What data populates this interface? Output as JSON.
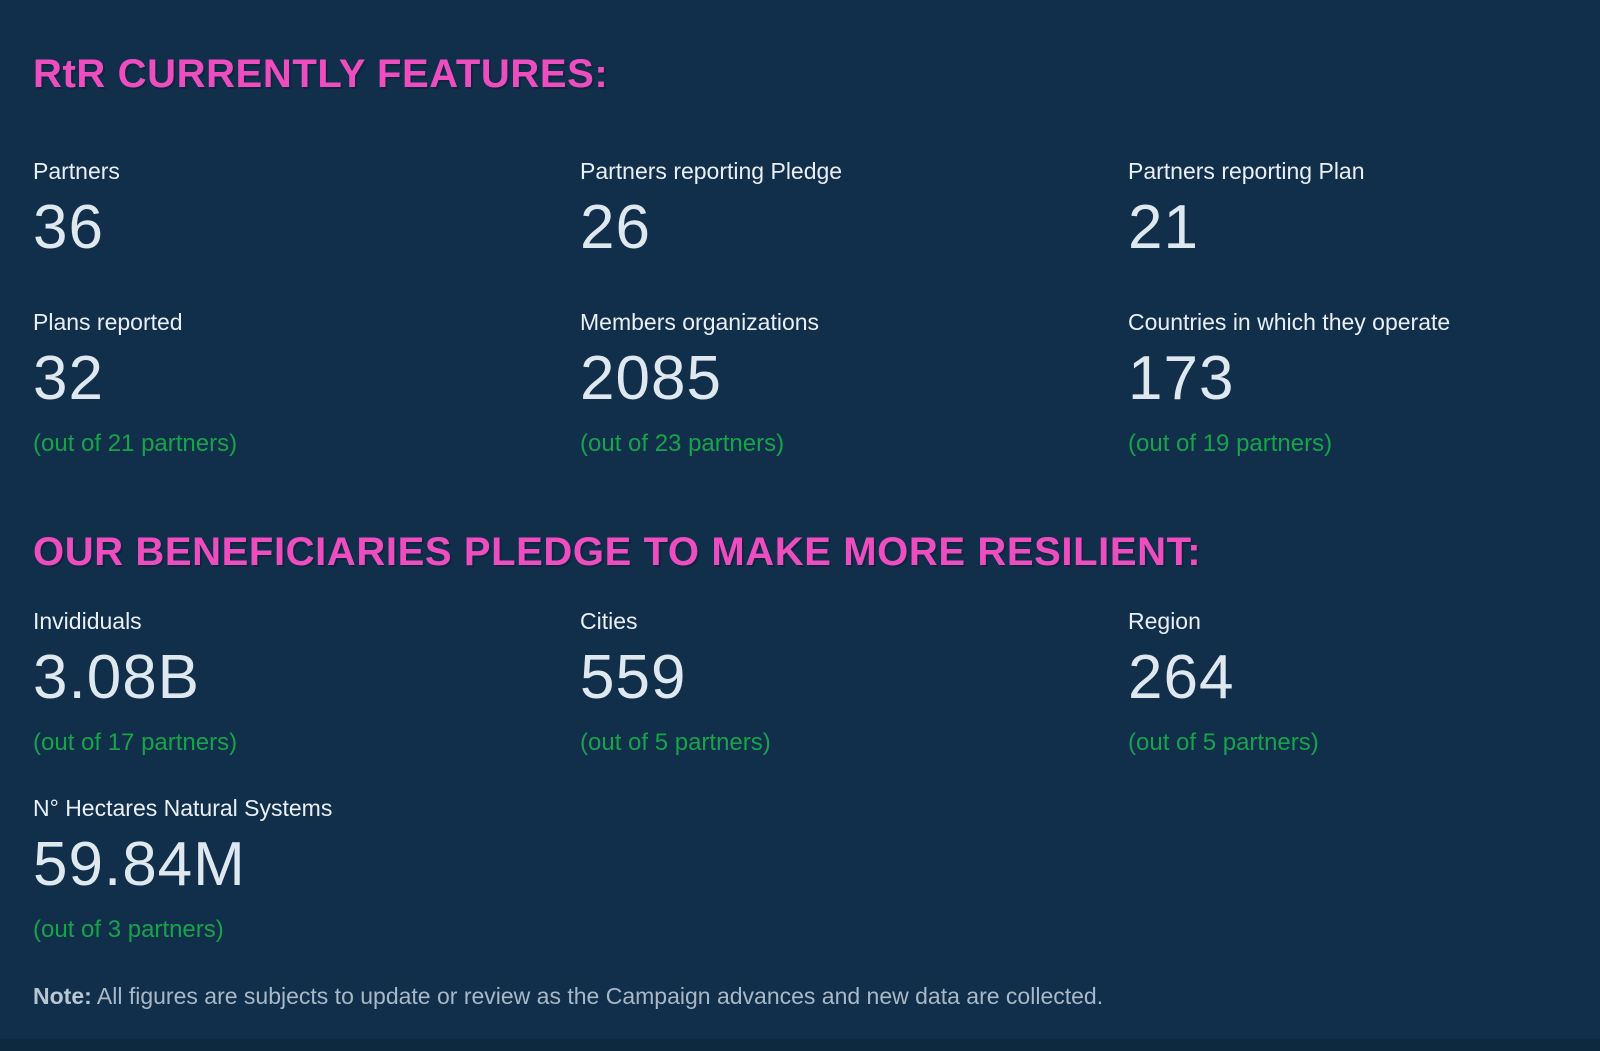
{
  "page": {
    "background_color": "#112f4b",
    "accent_pink": "#ee4dc0",
    "accent_green": "#17a34a",
    "text_light": "#e9eff4",
    "note_gray": "#a9b8c6"
  },
  "sections": [
    {
      "heading": "RtR CURRENTLY FEATURES:",
      "stats": [
        {
          "label": "Partners",
          "value": "36",
          "note": ""
        },
        {
          "label": "Partners reporting Pledge",
          "value": "26",
          "note": ""
        },
        {
          "label": "Partners reporting Plan",
          "value": "21",
          "note": ""
        },
        {
          "label": "Plans reported",
          "value": "32",
          "note": "(out of 21 partners)"
        },
        {
          "label": "Members organizations",
          "value": "2085",
          "note": "(out of 23 partners)"
        },
        {
          "label": "Countries in which they operate",
          "value": "173",
          "note": "(out of 19 partners)"
        }
      ]
    },
    {
      "heading": "OUR BENEFICIARIES PLEDGE TO MAKE MORE RESILIENT:",
      "stats": [
        {
          "label": "Invididuals",
          "value": "3.08B",
          "note": "(out of 17 partners)"
        },
        {
          "label": "Cities",
          "value": "559",
          "note": "(out of 5 partners)"
        },
        {
          "label": "Region",
          "value": "264",
          "note": "(out of 5 partners)"
        },
        {
          "label": "N° Hectares Natural Systems",
          "value": "59.84M",
          "note": "(out of 3 partners)"
        }
      ]
    }
  ],
  "footnote": {
    "prefix": "Note:",
    "text": " All figures are subjects to update or review as the Campaign advances and new data are collected."
  }
}
